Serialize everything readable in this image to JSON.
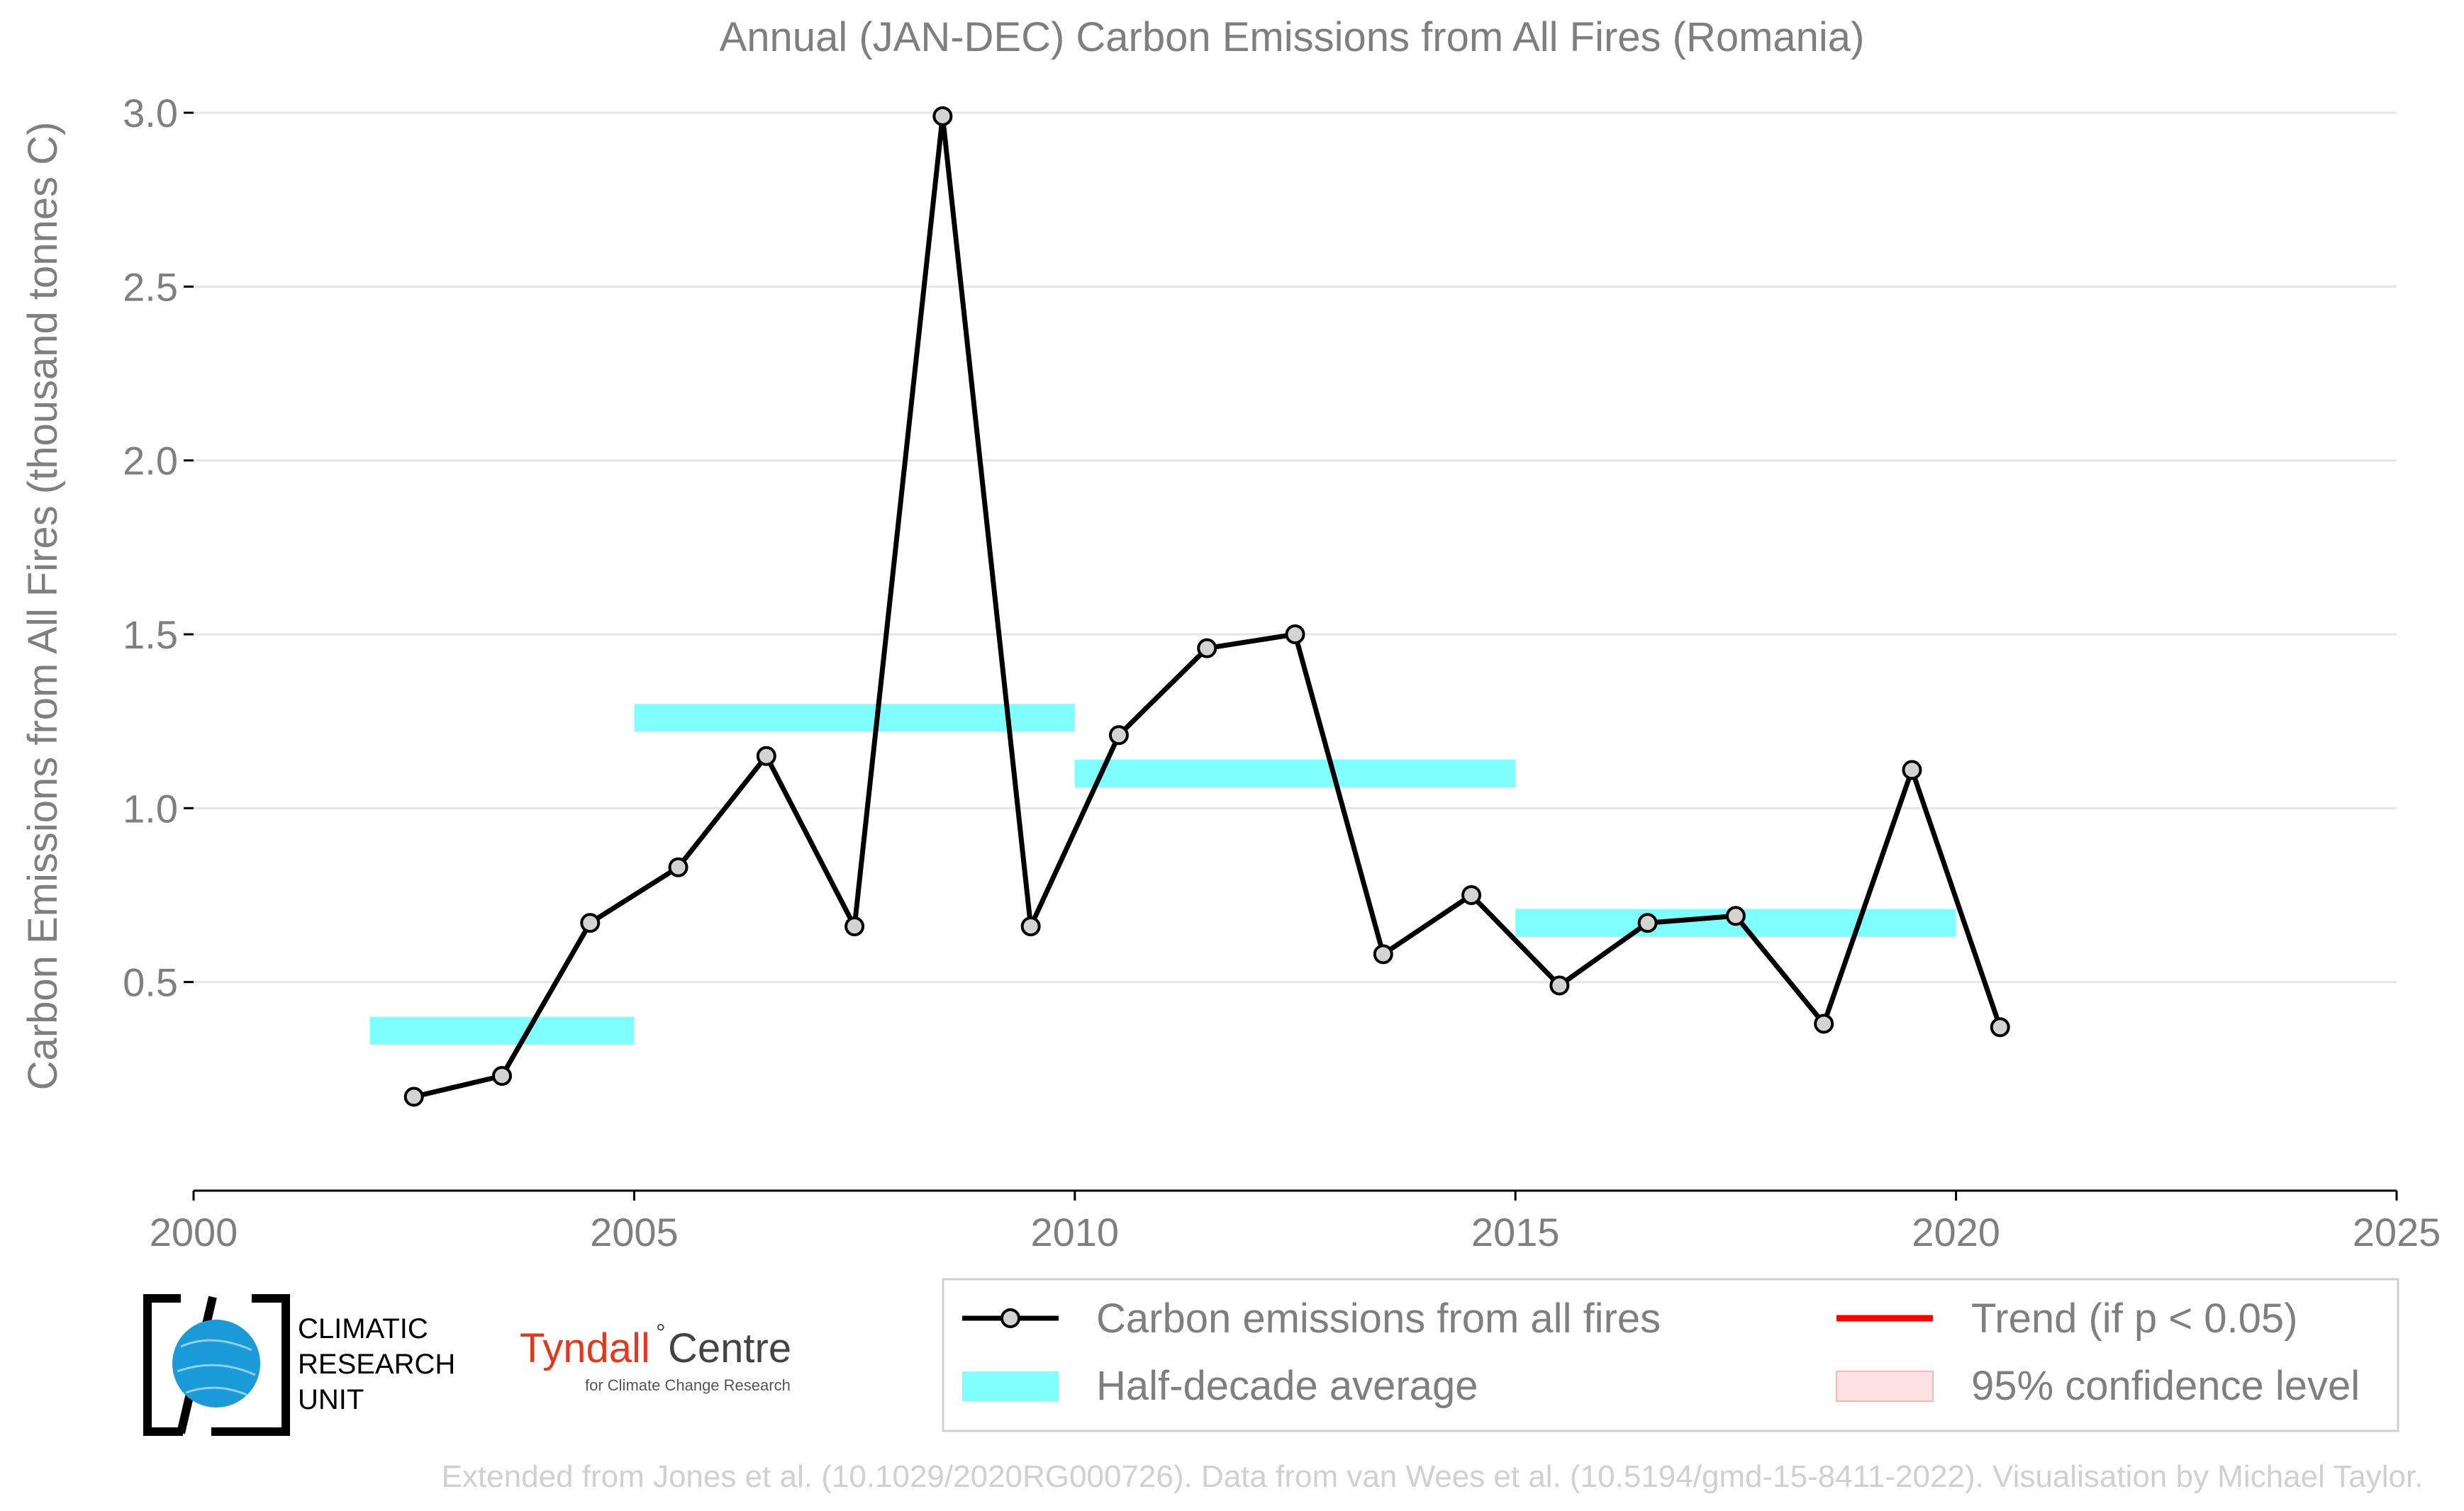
{
  "chart_data": {
    "type": "line",
    "title": "Annual (JAN-DEC) Carbon Emissions from All Fires (Romania)",
    "xlabel": "",
    "ylabel": "Carbon Emissions from All Fires (thousand tonnes C)",
    "xlim": [
      2000,
      2025
    ],
    "ylim": [
      -0.1,
      3.1
    ],
    "x_ticks": [
      2000,
      2005,
      2010,
      2015,
      2020,
      2025
    ],
    "x_tick_labels": [
      "2000",
      "2005",
      "2010",
      "2015",
      "2020",
      "2025"
    ],
    "y_ticks": [
      0.5,
      1.0,
      1.5,
      2.0,
      2.5,
      3.0
    ],
    "y_tick_labels": [
      "0.5",
      "1.0",
      "1.5",
      "2.0",
      "2.5",
      "3.0"
    ],
    "grid": "horizontal",
    "legend_position": "bottom-right",
    "series": [
      {
        "name": "Carbon emissions from all fires",
        "color": "#000000",
        "marker_fill": "#d3d3d3",
        "x": [
          2002.5,
          2003.5,
          2004.5,
          2005.5,
          2006.5,
          2007.5,
          2008.5,
          2009.5,
          2010.5,
          2011.5,
          2012.5,
          2013.5,
          2014.5,
          2015.5,
          2016.5,
          2017.5,
          2018.5,
          2019.5,
          2020.5
        ],
        "y": [
          0.17,
          0.23,
          0.67,
          0.83,
          1.15,
          0.66,
          2.99,
          0.66,
          1.21,
          1.46,
          1.5,
          0.58,
          0.75,
          0.49,
          0.67,
          0.69,
          0.38,
          1.11,
          0.37
        ]
      }
    ],
    "half_decade_average": {
      "name": "Half-decade average",
      "color": "#80ffff",
      "segments": [
        {
          "x_start": 2002,
          "x_end": 2005,
          "value": 0.36
        },
        {
          "x_start": 2005,
          "x_end": 2010,
          "value": 1.26
        },
        {
          "x_start": 2010,
          "x_end": 2015,
          "value": 1.1
        },
        {
          "x_start": 2015,
          "x_end": 2020,
          "value": 0.67
        }
      ]
    },
    "legend": [
      {
        "label": "Carbon emissions from all fires",
        "kind": "line-marker",
        "color": "#000000"
      },
      {
        "label": "Trend (if p < 0.05)",
        "kind": "line",
        "color": "#ff0000"
      },
      {
        "label": "Half-decade average",
        "kind": "patch",
        "color": "#80ffff"
      },
      {
        "label": "95% confidence level",
        "kind": "patch",
        "color": "#fde0e0"
      }
    ]
  },
  "logos": {
    "cru_line1": "CLIMATIC",
    "cru_line2": "RESEARCH",
    "cru_line3": "UNIT",
    "tyndall_name": "Tyndall",
    "tyndall_centre": "Centre",
    "tyndall_sub": "for Climate Change Research"
  },
  "footer": {
    "credit": "Extended from Jones et al. (10.1029/2020RG000726). Data from van Wees et al. (10.5194/gmd-15-8411-2022). Visualisation by Michael Taylor."
  }
}
